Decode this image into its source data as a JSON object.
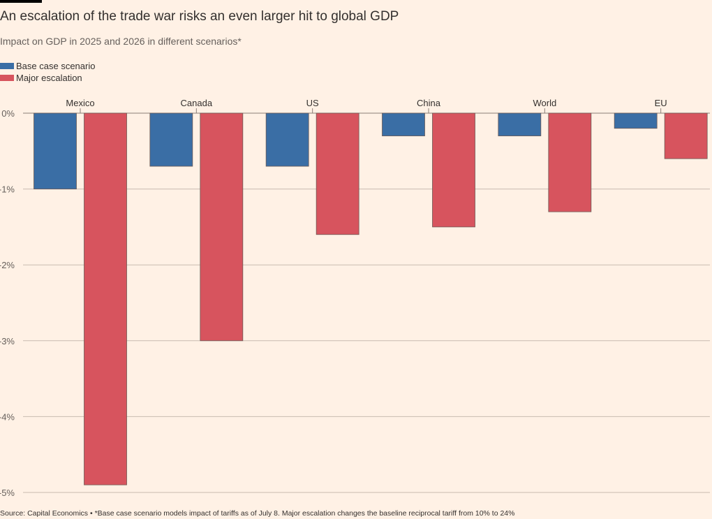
{
  "header": {
    "title": "An escalation of the trade war risks an even larger hit to global GDP",
    "subtitle": "Impact on GDP in 2025 and 2026 in different scenarios*"
  },
  "footer": {
    "source": "Source: Capital Economics • *Base case scenario models impact of tariffs as of July 8. Major escalation changes the baseline reciprocal tariff from 10% to 24%"
  },
  "colors": {
    "background": "#fff1e5",
    "base_case": "#3a6ea5",
    "escalation": "#d7545e",
    "grid": "#c8bbb0",
    "bar_stroke": "#6b5a55"
  },
  "chart_data": {
    "type": "bar",
    "title": "An escalation of the trade war risks an even larger hit to global GDP",
    "subtitle": "Impact on GDP in 2025 and 2026 in different scenarios*",
    "xlabel": "",
    "ylabel": "",
    "categories": [
      "Mexico",
      "Canada",
      "US",
      "China",
      "World",
      "EU"
    ],
    "series": [
      {
        "name": "Base case scenario",
        "color": "#3a6ea5",
        "values": [
          -1.0,
          -0.7,
          -0.7,
          -0.3,
          -0.3,
          -0.2
        ]
      },
      {
        "name": "Major escalation",
        "color": "#d7545e",
        "values": [
          -4.9,
          -3.0,
          -1.6,
          -1.5,
          -1.3,
          -0.6
        ]
      }
    ],
    "ylim": [
      -5,
      0
    ],
    "yticks": [
      0,
      -1,
      -2,
      -3,
      -4,
      -5
    ],
    "ytick_labels": [
      "0%",
      "-1%",
      "-2%",
      "-3%",
      "-4%",
      "-5%"
    ],
    "grid": true,
    "legend_position": "top-left",
    "category_axis_position": "top"
  }
}
